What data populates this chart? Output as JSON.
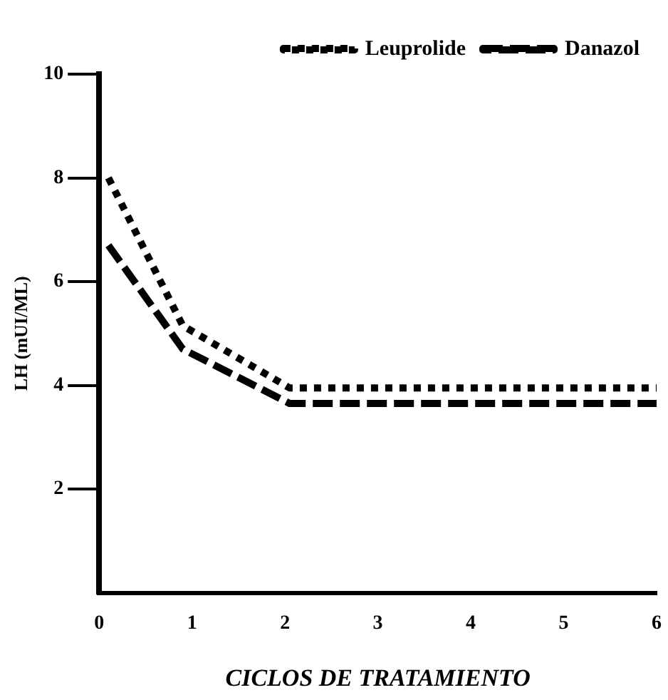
{
  "chart_data": {
    "type": "line",
    "xlabel": "CICLOS DE TRATAMIENTO",
    "ylabel": "LH (mUI/ML)",
    "xlim": [
      0,
      6
    ],
    "xticks": [
      0,
      1,
      2,
      3,
      4,
      5,
      6
    ],
    "ylim": [
      0,
      10
    ],
    "yticks": [
      2,
      4,
      6,
      8,
      10
    ],
    "grid": false,
    "legend": "top right",
    "marker": "none",
    "series": [
      {
        "name": "Leuprolide",
        "color": "#000000",
        "line_style": "dotted",
        "x": [
          0.1,
          0.9,
          2.05,
          6
        ],
        "values": [
          8,
          5.15,
          3.95,
          3.95
        ]
      },
      {
        "name": "Danazol",
        "color": "#000000",
        "line_style": "dashed",
        "x": [
          0.1,
          0.9,
          2.05,
          6
        ],
        "values": [
          6.7,
          4.7,
          3.65,
          3.65
        ]
      }
    ]
  }
}
